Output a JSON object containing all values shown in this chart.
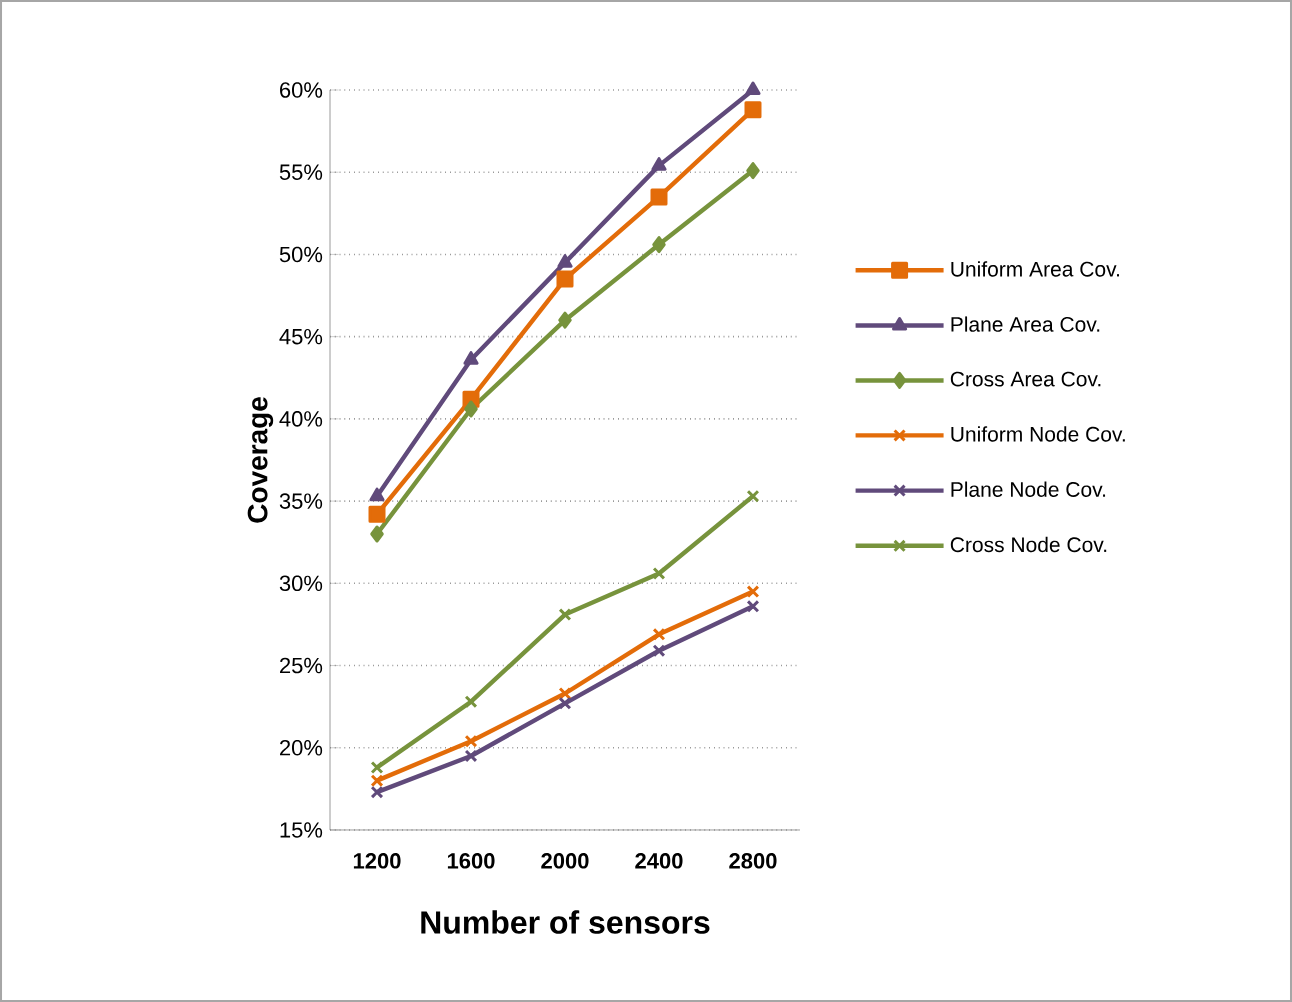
{
  "chart_data": {
    "type": "line",
    "xlabel": "Number of sensors",
    "ylabel": "Coverage",
    "categories": [
      "1200",
      "1600",
      "2000",
      "2400",
      "2800"
    ],
    "series": [
      {
        "name": "Uniform Area Cov.",
        "color": "#e36c09",
        "marker": "square",
        "values": [
          34.2,
          41.2,
          48.5,
          53.5,
          58.8
        ]
      },
      {
        "name": "Plane Area Cov.",
        "color": "#604a7b",
        "marker": "triangle",
        "values": [
          35.3,
          43.6,
          49.5,
          55.4,
          60.0
        ]
      },
      {
        "name": "Cross Area Cov.",
        "color": "#77933c",
        "marker": "diamond",
        "values": [
          33.0,
          40.6,
          46.0,
          50.6,
          55.1
        ]
      },
      {
        "name": "Uniform Node Cov.",
        "color": "#e36c09",
        "marker": "cross",
        "values": [
          18.0,
          20.4,
          23.3,
          26.9,
          29.5
        ]
      },
      {
        "name": "Plane Node Cov.",
        "color": "#604a7b",
        "marker": "cross",
        "values": [
          17.3,
          19.5,
          22.7,
          25.9,
          28.6
        ]
      },
      {
        "name": "Cross Node Cov.",
        "color": "#77933c",
        "marker": "cross",
        "values": [
          18.8,
          22.8,
          28.1,
          30.6,
          35.3
        ]
      }
    ],
    "ylim": [
      15,
      60
    ],
    "yticks": [
      {
        "value": 15,
        "label": "15%"
      },
      {
        "value": 20,
        "label": "20%"
      },
      {
        "value": 25,
        "label": "25%"
      },
      {
        "value": 30,
        "label": "30%"
      },
      {
        "value": 35,
        "label": "35%"
      },
      {
        "value": 40,
        "label": "40%"
      },
      {
        "value": 45,
        "label": "45%"
      },
      {
        "value": 50,
        "label": "50%"
      },
      {
        "value": 55,
        "label": "55%"
      },
      {
        "value": 60,
        "label": "60%"
      }
    ],
    "grid": "y",
    "legend": "right",
    "line_style": "solid"
  }
}
